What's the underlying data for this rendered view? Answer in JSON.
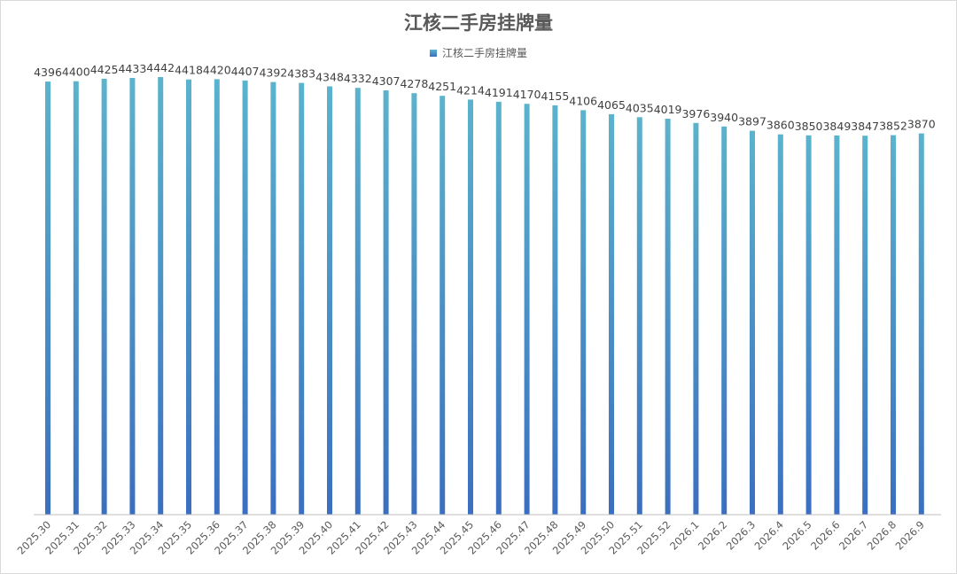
{
  "chart_data": {
    "type": "bar",
    "title": "江核二手房挂牌量",
    "legend": "top",
    "grid": false,
    "colors": {
      "bar_top": "#5bb3cc",
      "bar_bottom": "#3a6fc0",
      "axis": "#bfbfbf"
    },
    "ylim": [
      0,
      4442
    ],
    "series": [
      {
        "name": "江核二手房挂牌量",
        "values": [
          4396,
          4400,
          4425,
          4433,
          4442,
          4418,
          4420,
          4407,
          4392,
          4383,
          4348,
          4332,
          4307,
          4278,
          4251,
          4214,
          4191,
          4170,
          4155,
          4106,
          4065,
          4035,
          4019,
          3976,
          3940,
          3897,
          3860,
          3850,
          3849,
          3847,
          3852,
          3870
        ]
      }
    ],
    "categories": [
      "2025.30",
      "2025.31",
      "2025.32",
      "2025.33",
      "2025.34",
      "2025.35",
      "2025.36",
      "2025.37",
      "2025.38",
      "2025.39",
      "2025.40",
      "2025.41",
      "2025.42",
      "2025.43",
      "2025.44",
      "2025.45",
      "2025.46",
      "2025.47",
      "2025.48",
      "2025.49",
      "2025.50",
      "2025.51",
      "2025.52",
      "2026.1",
      "2026.2",
      "2026.3",
      "2026.4",
      "2026.5",
      "2026.6",
      "2026.7",
      "2026.8",
      "2026.9"
    ]
  }
}
